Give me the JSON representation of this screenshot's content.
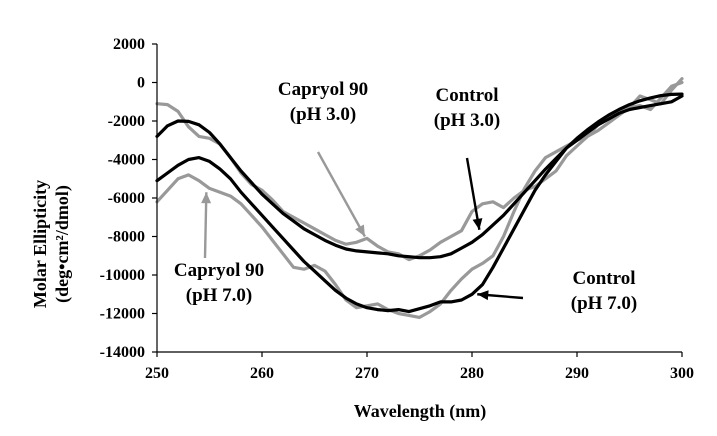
{
  "chart_data": {
    "type": "line",
    "title": "",
    "xlabel": "Wavelength (nm)",
    "ylabel_lines": [
      "Molar Ellipticity",
      "(deg•cm²/dmol)"
    ],
    "xlim": [
      250,
      300
    ],
    "ylim": [
      -14000,
      2000
    ],
    "xticks": [
      250,
      260,
      270,
      280,
      290,
      300
    ],
    "yticks": [
      2000,
      0,
      -2000,
      -4000,
      -6000,
      -8000,
      -10000,
      -12000,
      -14000
    ],
    "grid": false,
    "legend": "none",
    "colors": {
      "control": "#000000",
      "capryol": "#999999",
      "axis": "#000000"
    },
    "series": [
      {
        "name": "Control (pH 3.0)",
        "color": "#000000",
        "x": [
          250,
          251,
          252,
          253,
          254,
          255,
          256,
          257,
          258,
          259,
          260,
          261,
          262,
          263,
          264,
          265,
          266,
          267,
          268,
          269,
          270,
          271,
          272,
          273,
          274,
          275,
          276,
          277,
          278,
          279,
          280,
          281,
          282,
          283,
          284,
          285,
          286,
          287,
          288,
          289,
          290,
          291,
          292,
          293,
          294,
          295,
          296,
          297,
          298,
          299,
          300
        ],
        "y": [
          -2800,
          -2250,
          -2000,
          -2020,
          -2200,
          -2600,
          -3200,
          -3900,
          -4600,
          -5200,
          -5800,
          -6300,
          -6800,
          -7200,
          -7600,
          -7900,
          -8200,
          -8450,
          -8650,
          -8750,
          -8800,
          -8850,
          -8900,
          -9000,
          -9050,
          -9100,
          -9100,
          -9050,
          -8900,
          -8600,
          -8300,
          -7900,
          -7400,
          -6900,
          -6300,
          -5700,
          -5100,
          -4500,
          -3950,
          -3400,
          -2900,
          -2450,
          -2050,
          -1700,
          -1400,
          -1150,
          -950,
          -800,
          -680,
          -620,
          -600
        ]
      },
      {
        "name": "Capryol 90 (pH 3.0)",
        "color": "#999999",
        "x": [
          250,
          251,
          252,
          253,
          254,
          255,
          256,
          257,
          258,
          259,
          260,
          261,
          262,
          263,
          264,
          265,
          266,
          267,
          268,
          269,
          270,
          271,
          272,
          273,
          274,
          275,
          276,
          277,
          278,
          279,
          280,
          281,
          282,
          283,
          284,
          285,
          286,
          287,
          288,
          289,
          290,
          291,
          292,
          293,
          294,
          295,
          296,
          297,
          298,
          299,
          300
        ],
        "y": [
          -1100,
          -1150,
          -1500,
          -2300,
          -2800,
          -2900,
          -3200,
          -3900,
          -4700,
          -5300,
          -5600,
          -6100,
          -6700,
          -7000,
          -7300,
          -7600,
          -7900,
          -8200,
          -8400,
          -8300,
          -8100,
          -8500,
          -8800,
          -8900,
          -9200,
          -9000,
          -8700,
          -8300,
          -8000,
          -7700,
          -6700,
          -6300,
          -6200,
          -6500,
          -6000,
          -5600,
          -5400,
          -5000,
          -4600,
          -3800,
          -3300,
          -2800,
          -2200,
          -1800,
          -1600,
          -1300,
          -700,
          -900,
          -1100,
          -400,
          200
        ]
      },
      {
        "name": "Control (pH 7.0)",
        "color": "#000000",
        "x": [
          250,
          251,
          252,
          253,
          254,
          255,
          256,
          257,
          258,
          259,
          260,
          261,
          262,
          263,
          264,
          265,
          266,
          267,
          268,
          269,
          270,
          271,
          272,
          273,
          274,
          275,
          276,
          277,
          278,
          279,
          280,
          281,
          282,
          283,
          284,
          285,
          286,
          287,
          288,
          289,
          290,
          291,
          292,
          293,
          294,
          295,
          296,
          297,
          298,
          299,
          300
        ],
        "y": [
          -5100,
          -4700,
          -4300,
          -4000,
          -3900,
          -4100,
          -4500,
          -5000,
          -5700,
          -6300,
          -6900,
          -7500,
          -8100,
          -8700,
          -9300,
          -9800,
          -10300,
          -10800,
          -11200,
          -11500,
          -11700,
          -11800,
          -11850,
          -11800,
          -11900,
          -11750,
          -11600,
          -11400,
          -11400,
          -11300,
          -11000,
          -10500,
          -9600,
          -8600,
          -7600,
          -6600,
          -5600,
          -4800,
          -4100,
          -3400,
          -3000,
          -2600,
          -2200,
          -1900,
          -1600,
          -1400,
          -1300,
          -1200,
          -1100,
          -1000,
          -700
        ]
      },
      {
        "name": "Capryol 90 (pH 7.0)",
        "color": "#999999",
        "x": [
          250,
          251,
          252,
          253,
          254,
          255,
          256,
          257,
          258,
          259,
          260,
          261,
          262,
          263,
          264,
          265,
          266,
          267,
          268,
          269,
          270,
          271,
          272,
          273,
          274,
          275,
          276,
          277,
          278,
          279,
          280,
          281,
          282,
          283,
          284,
          285,
          286,
          287,
          288,
          289,
          290,
          291,
          292,
          293,
          294,
          295,
          296,
          297,
          298,
          299,
          300
        ],
        "y": [
          -6200,
          -5600,
          -5000,
          -4800,
          -5100,
          -5500,
          -5700,
          -5900,
          -6300,
          -6900,
          -7500,
          -8200,
          -8900,
          -9600,
          -9700,
          -9500,
          -9800,
          -10500,
          -11300,
          -11700,
          -11600,
          -11500,
          -11800,
          -12000,
          -12100,
          -12200,
          -11900,
          -11500,
          -10800,
          -10200,
          -9700,
          -9400,
          -9000,
          -8000,
          -6700,
          -5500,
          -4600,
          -3900,
          -3600,
          -3300,
          -3000,
          -2800,
          -2500,
          -2100,
          -1700,
          -1300,
          -1200,
          -1400,
          -800,
          -200,
          0
        ]
      }
    ],
    "annotations": [
      {
        "id": "capryol-ph3",
        "lines": [
          "Capryol 90",
          "(pH 3.0)"
        ],
        "color": "#999999",
        "target_x": 269.8,
        "target_y": -8000
      },
      {
        "id": "control-ph3",
        "lines": [
          "Control",
          "(pH 3.0)"
        ],
        "color": "#000000",
        "target_x": 280.7,
        "target_y": -7650
      },
      {
        "id": "capryol-ph7",
        "lines": [
          "Capryol 90",
          "(pH 7.0)"
        ],
        "color": "#999999",
        "target_x": 254.7,
        "target_y": -5700
      },
      {
        "id": "control-ph7",
        "lines": [
          "Control",
          "(pH 7.0)"
        ],
        "color": "#000000",
        "target_x": 280.5,
        "target_y": -11000
      }
    ]
  }
}
